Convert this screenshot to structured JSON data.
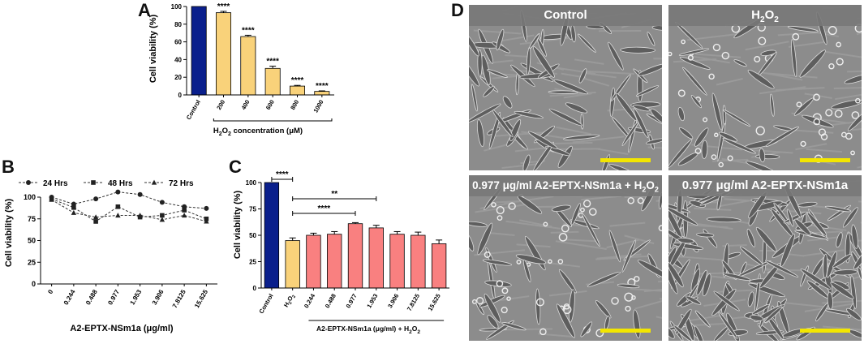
{
  "panel_letters": {
    "a": "A",
    "b": "B",
    "c": "C",
    "d": "D"
  },
  "chart_data": [
    {
      "id": "A",
      "type": "bar",
      "ylabel": "Cell viability (%)",
      "xlabel_prefix": "H",
      "xlabel_sub": "2",
      "xlabel_mid": "O",
      "xlabel_sub2": "2",
      "xlabel_suffix": " concentration (μM)",
      "ylim": [
        0,
        100
      ],
      "yticks": [
        "0",
        "20",
        "40",
        "60",
        "80",
        "100"
      ],
      "categories": [
        "Control",
        "200",
        "400",
        "600",
        "800",
        "1000"
      ],
      "values": [
        100,
        93,
        66,
        30,
        10,
        4
      ],
      "errors": [
        0,
        1.5,
        1.5,
        2.5,
        0.8,
        0.6
      ],
      "significance": [
        "",
        "****",
        "****",
        "****",
        "****",
        "****"
      ],
      "colors": [
        "#0a1f8c",
        "#f9d27a",
        "#f9d27a",
        "#f9d27a",
        "#f9d27a",
        "#f9d27a"
      ]
    },
    {
      "id": "B",
      "type": "line",
      "ylabel": "Cell viability (%)",
      "xlabel": "A2-EPTX-NSm1a (μg/ml)",
      "ylim": [
        0,
        100
      ],
      "yticks": [
        "0",
        "25",
        "50",
        "75",
        "100"
      ],
      "categories": [
        "0",
        "0.244",
        "0.488",
        "0.977",
        "1.953",
        "3.906",
        "7.8125",
        "15.625"
      ],
      "series": [
        {
          "name": "24 Hrs",
          "marker": "circle",
          "values": [
            100,
            92,
            98,
            106,
            103,
            94,
            89,
            87
          ]
        },
        {
          "name": "48 Hrs",
          "marker": "square",
          "values": [
            98,
            88,
            72,
            89,
            77,
            79,
            85,
            75
          ]
        },
        {
          "name": "72 Hrs",
          "marker": "triangle",
          "values": [
            97,
            82,
            77,
            79,
            79,
            74,
            79,
            72
          ]
        }
      ],
      "legend_position": "top"
    },
    {
      "id": "C",
      "type": "bar",
      "ylabel": "Cell viability (%)",
      "xlabel": "A2-EPTX-NSm1a  (μg/ml) + H",
      "xlabel_sub": "2",
      "xlabel_mid": "O",
      "xlabel_sub2": "2",
      "ylim": [
        0,
        100
      ],
      "yticks": [
        "0",
        "25",
        "50",
        "75",
        "100"
      ],
      "categories": [
        "Control",
        "H2O2",
        "0.244",
        "0.488",
        "0.977",
        "1.953",
        "3.906",
        "7.8125",
        "15.625"
      ],
      "category_h2o2": {
        "main": "H",
        "sub": "2",
        "mid": "O",
        "sub2": "2"
      },
      "values": [
        100,
        45,
        50,
        51,
        61,
        57,
        51,
        50,
        42
      ],
      "errors": [
        0,
        2.5,
        2.0,
        2.5,
        1.0,
        2.5,
        2.5,
        3.0,
        3.5
      ],
      "colors": [
        "#0a1f8c",
        "#f9d27a",
        "#f98080",
        "#f98080",
        "#f98080",
        "#f98080",
        "#f98080",
        "#f98080",
        "#f98080"
      ],
      "brackets": [
        {
          "from": 0,
          "to": 1,
          "label": "****"
        },
        {
          "from": 1,
          "to": 5,
          "label": "**"
        },
        {
          "from": 1,
          "to": 4,
          "label": "****"
        }
      ]
    }
  ],
  "micrographs": [
    {
      "title": "Control"
    },
    {
      "title_main": "H",
      "title_sub": "2",
      "title_mid": "O",
      "title_sub2": "2"
    },
    {
      "title": "0.977 μg/ml A2-EPTX-NSm1a + H",
      "title_sub": "2",
      "title_mid": "O",
      "title_sub2": "2"
    },
    {
      "title": "0.977 μg/ml A2-EPTX-NSm1a"
    }
  ]
}
